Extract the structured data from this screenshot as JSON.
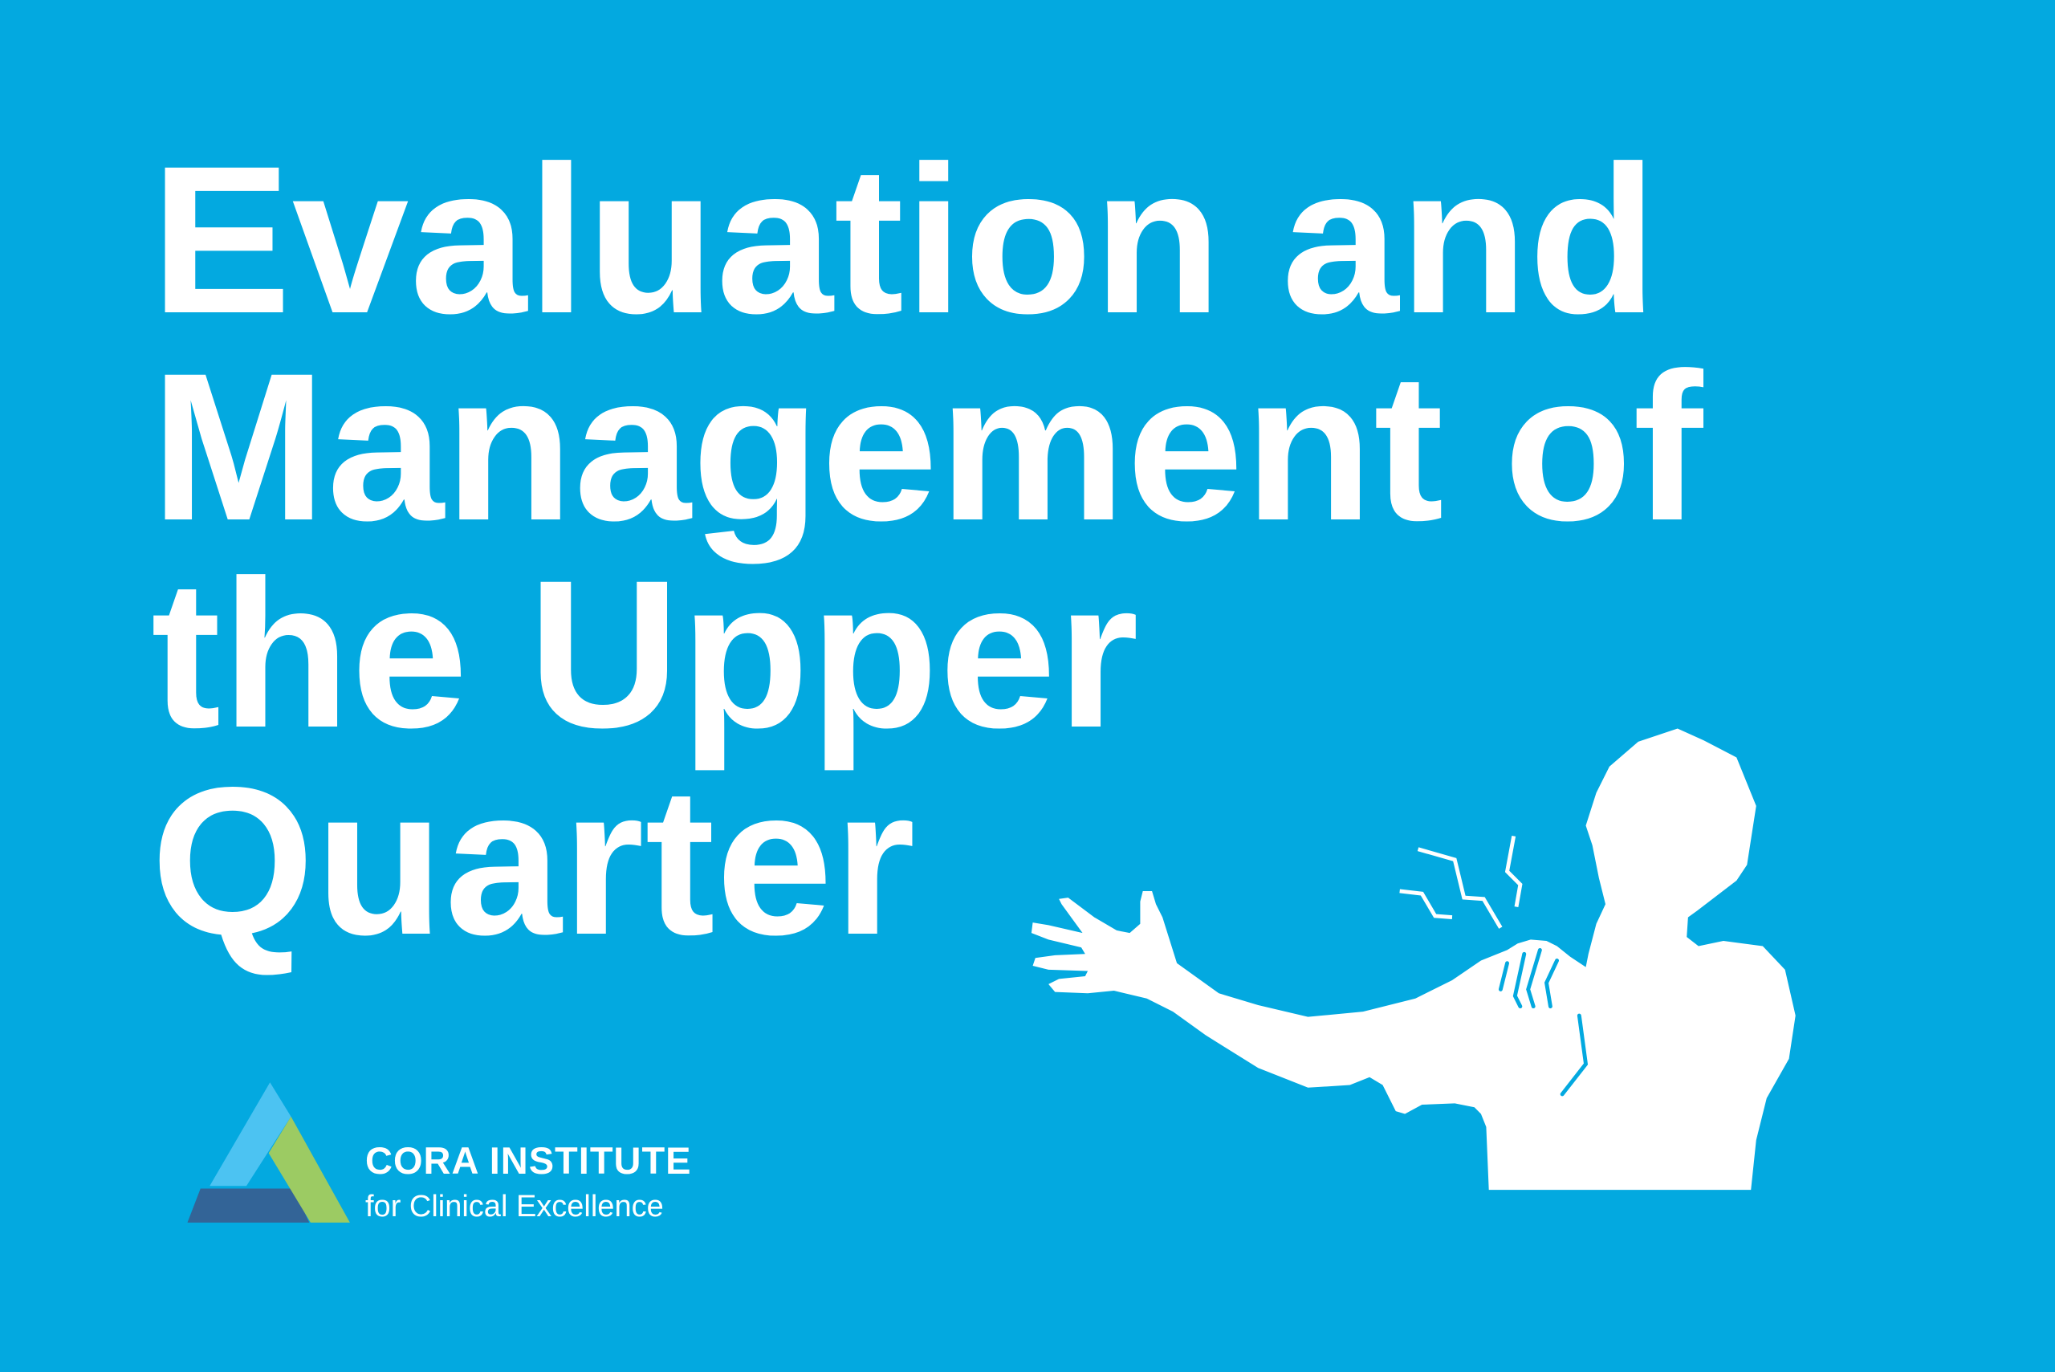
{
  "title": {
    "lines": [
      "Evaluation and",
      "Management of",
      "the Upper",
      "Quarter"
    ]
  },
  "logo": {
    "name": "CORA INSTITUTE",
    "tagline": "for Clinical Excellence",
    "colors": {
      "light_blue": "#4cc3f2",
      "green": "#9ccb63",
      "dark_blue": "#336497"
    }
  },
  "illustration": {
    "icon": "person-shoulder-pain-icon"
  },
  "colors": {
    "background": "#03a9e0",
    "foreground": "#ffffff"
  }
}
